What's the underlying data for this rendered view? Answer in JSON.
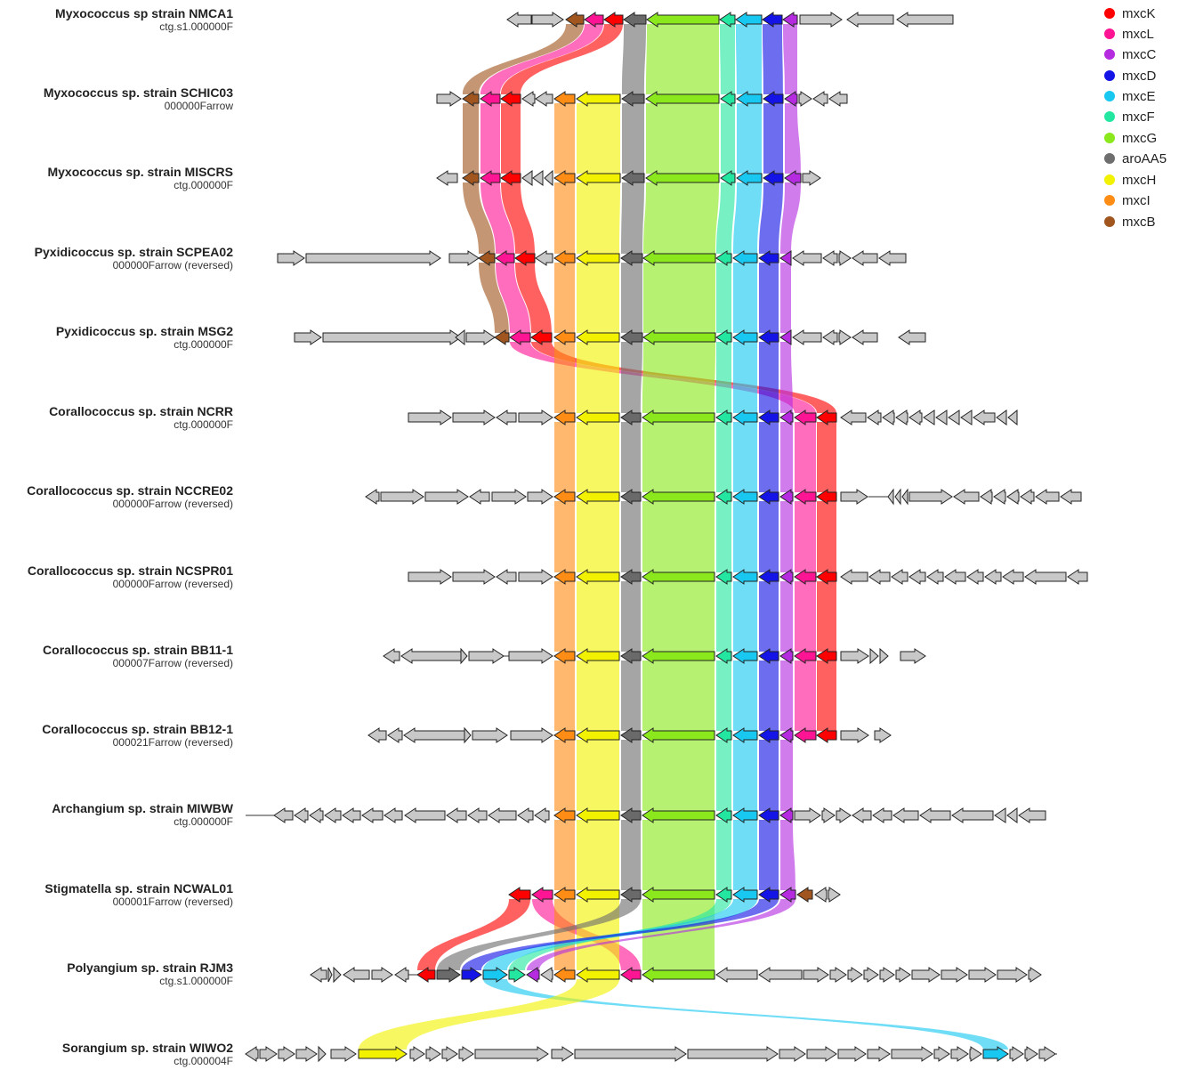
{
  "legend": [
    {
      "gene": "mxcK",
      "color": "#ff0000"
    },
    {
      "gene": "mxcL",
      "color": "#ff1493"
    },
    {
      "gene": "mxcC",
      "color": "#b42be0"
    },
    {
      "gene": "mxcD",
      "color": "#1414e6"
    },
    {
      "gene": "mxcE",
      "color": "#18c8f0"
    },
    {
      "gene": "mxcF",
      "color": "#23e6a0"
    },
    {
      "gene": "mxcG",
      "color": "#8ae81c"
    },
    {
      "gene": "aroAA5",
      "color": "#6e6e6e"
    },
    {
      "gene": "mxcH",
      "color": "#f2f200"
    },
    {
      "gene": "mxcI",
      "color": "#ff8c14"
    },
    {
      "gene": "mxcB",
      "color": "#a0561e"
    }
  ],
  "strains": [
    {
      "name": "Myxococcus sp strain NMCA1",
      "contig": "ctg.s1.000000F"
    },
    {
      "name": "Myxococcus sp. strain SCHIC03",
      "contig": "000000Farrow"
    },
    {
      "name": "Myxococcus sp. strain MISCRS",
      "contig": "ctg.000000F"
    },
    {
      "name": "Pyxidicoccus sp. strain SCPEA02",
      "contig": "000000Farrow (reversed)"
    },
    {
      "name": "Pyxidicoccus sp. strain MSG2",
      "contig": "ctg.000000F"
    },
    {
      "name": "Corallococcus sp. strain NCRR",
      "contig": "ctg.000000F"
    },
    {
      "name": "Corallococcus sp. strain NCCRE02",
      "contig": "000000Farrow (reversed)"
    },
    {
      "name": "Corallococcus sp. strain NCSPR01",
      "contig": "000000Farrow (reversed)"
    },
    {
      "name": "Corallococcus sp. strain BB11-1",
      "contig": "000007Farrow (reversed)"
    },
    {
      "name": "Corallococcus sp. strain BB12-1",
      "contig": "000021Farrow (reversed)"
    },
    {
      "name": "Archangium sp. strain MIWBW",
      "contig": "ctg.000000F"
    },
    {
      "name": "Stigmatella sp. strain NCWAL01",
      "contig": "000001Farrow (reversed)"
    },
    {
      "name": "Polyangium sp. strain RJM3",
      "contig": "ctg.s1.000000F"
    },
    {
      "name": "Sorangium sp. strain WIWO2",
      "contig": "ctg.000004F"
    }
  ]
}
